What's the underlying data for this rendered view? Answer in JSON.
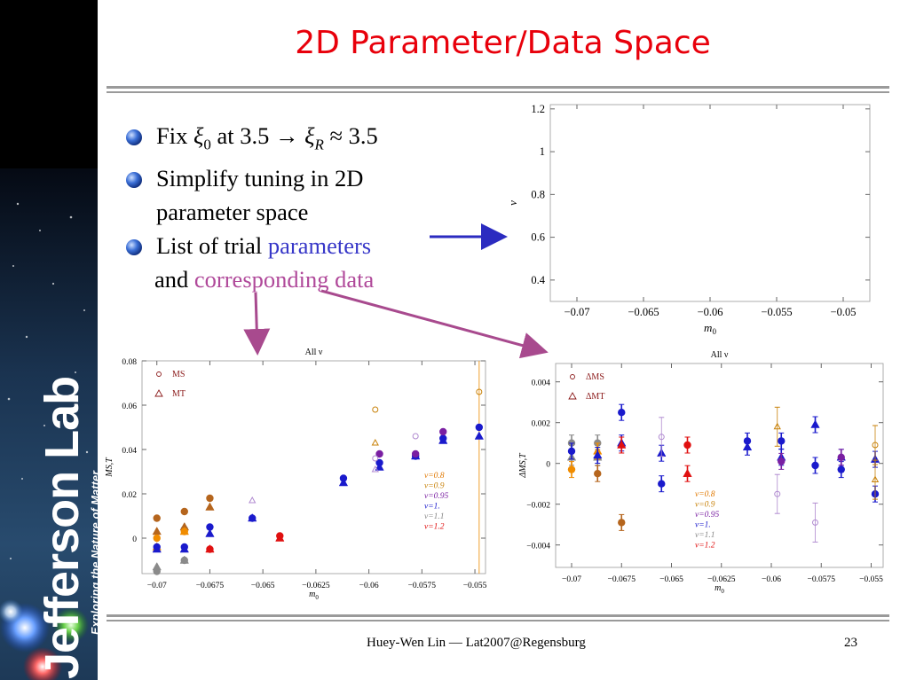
{
  "slide": {
    "title": "2D Parameter/Data Space",
    "footer_text": "Huey-Wen Lin — Lat2007@Regensburg",
    "page_number": "23",
    "brand": {
      "name": "Jefferson Lab",
      "tagline": "Exploring the Nature of Matter"
    },
    "colors": {
      "title": "#e8000b",
      "accent_blue": "#3737c8",
      "accent_magenta": "#b0499a",
      "arrow_blue": "#2b2bc0",
      "arrow_magenta": "#a84a8e"
    }
  },
  "bullets": [
    {
      "parts": [
        "Fix ",
        "ξ",
        "0",
        " at 3.5 ",
        "→ ",
        "ξ",
        "R",
        " ≈ 3.5"
      ]
    },
    {
      "parts": [
        "Simplify tuning in 2D",
        "parameter space"
      ]
    },
    {
      "parts": [
        "List of trial ",
        "parameters",
        "and ",
        "corresponding data"
      ]
    }
  ],
  "chart_data": [
    {
      "type": "scatter",
      "title": "",
      "xlabel": "m0",
      "ylabel": "ν",
      "xlim": [
        -0.072,
        -0.048
      ],
      "ylim": [
        0.3,
        1.22
      ],
      "xticks": [
        "−0.07",
        "−0.065",
        "−0.06",
        "−0.055",
        "−0.05"
      ],
      "yticks": [
        "1.2",
        "1",
        "0.8",
        "0.6",
        "0.4"
      ],
      "series": []
    },
    {
      "type": "scatter",
      "title": "All ν",
      "xlabel": "m0",
      "ylabel": "MS,T",
      "xlim": [
        -0.0707,
        -0.0545
      ],
      "ylim": [
        -0.016,
        0.08
      ],
      "xticks": [
        "−0.07",
        "−0.0675",
        "−0.065",
        "−0.0625",
        "−0.06",
        "−0.0575",
        "−0.055"
      ],
      "yticks": [
        "0.08",
        "0.06",
        "0.04",
        "0.02",
        "0"
      ],
      "legend": [
        {
          "symbol": "circle",
          "label": "MS",
          "color": "#8b1a1a"
        },
        {
          "symbol": "triangle",
          "label": "MT",
          "color": "#8b1a1a"
        }
      ],
      "nu_legend": [
        {
          "label": "ν=0.8",
          "color": "#e07800"
        },
        {
          "label": "ν=0.9",
          "color": "#c8820a"
        },
        {
          "label": "ν=0.95",
          "color": "#7a1fa2"
        },
        {
          "label": "ν=1.",
          "color": "#1a1acc"
        },
        {
          "label": "ν=1.1",
          "color": "#888888"
        },
        {
          "label": "ν=1.2",
          "color": "#e01010"
        }
      ],
      "series": [
        {
          "color": "#8a8a8a",
          "points": [
            {
              "x": -0.07,
              "y": -0.015,
              "m": "c"
            },
            {
              "x": -0.07,
              "y": -0.013,
              "m": "t"
            },
            {
              "x": -0.0687,
              "y": -0.01,
              "m": "c"
            },
            {
              "x": -0.0687,
              "y": -0.01,
              "m": "t"
            },
            {
              "x": -0.0687,
              "y": 0.004,
              "m": "c"
            },
            {
              "x": -0.0687,
              "y": 0.005,
              "m": "t"
            }
          ]
        },
        {
          "color": "#b5651d",
          "points": [
            {
              "x": -0.07,
              "y": 0.009,
              "m": "c"
            },
            {
              "x": -0.07,
              "y": 0.003,
              "m": "t"
            },
            {
              "x": -0.0687,
              "y": 0.012,
              "m": "c"
            },
            {
              "x": -0.0687,
              "y": 0.005,
              "m": "t"
            },
            {
              "x": -0.0675,
              "y": 0.018,
              "m": "c"
            },
            {
              "x": -0.0675,
              "y": 0.014,
              "m": "t"
            }
          ]
        },
        {
          "color": "#f08c00",
          "points": [
            {
              "x": -0.07,
              "y": 0.0,
              "m": "c"
            },
            {
              "x": -0.07,
              "y": -0.004,
              "m": "t"
            },
            {
              "x": -0.0687,
              "y": 0.003,
              "m": "c"
            },
            {
              "x": -0.0687,
              "y": 0.003,
              "m": "t"
            }
          ]
        },
        {
          "color": "#1a1acc",
          "points": [
            {
              "x": -0.07,
              "y": -0.004,
              "m": "c"
            },
            {
              "x": -0.07,
              "y": -0.005,
              "m": "t"
            },
            {
              "x": -0.0687,
              "y": -0.004,
              "m": "c"
            },
            {
              "x": -0.0687,
              "y": -0.005,
              "m": "t"
            },
            {
              "x": -0.0675,
              "y": 0.005,
              "m": "c"
            },
            {
              "x": -0.0675,
              "y": 0.002,
              "m": "t"
            },
            {
              "x": -0.0655,
              "y": 0.009,
              "m": "c"
            },
            {
              "x": -0.0655,
              "y": 0.009,
              "m": "t"
            },
            {
              "x": -0.0612,
              "y": 0.027,
              "m": "c"
            },
            {
              "x": -0.0612,
              "y": 0.025,
              "m": "t"
            },
            {
              "x": -0.0595,
              "y": 0.034,
              "m": "c"
            },
            {
              "x": -0.0595,
              "y": 0.032,
              "m": "t"
            },
            {
              "x": -0.0578,
              "y": 0.037,
              "m": "c"
            },
            {
              "x": -0.0578,
              "y": 0.037,
              "m": "t"
            },
            {
              "x": -0.0565,
              "y": 0.045,
              "m": "c"
            },
            {
              "x": -0.0565,
              "y": 0.044,
              "m": "t"
            },
            {
              "x": -0.0548,
              "y": 0.05,
              "m": "c"
            },
            {
              "x": -0.0548,
              "y": 0.046,
              "m": "t"
            }
          ]
        },
        {
          "color": "#e01010",
          "points": [
            {
              "x": -0.0675,
              "y": -0.005,
              "m": "c"
            },
            {
              "x": -0.0675,
              "y": -0.005,
              "m": "t"
            },
            {
              "x": -0.0642,
              "y": 0.001,
              "m": "c"
            },
            {
              "x": -0.0642,
              "y": 0.0,
              "m": "t"
            }
          ]
        },
        {
          "color": "#7a1fa2",
          "points": [
            {
              "x": -0.0595,
              "y": 0.038,
              "m": "c"
            },
            {
              "x": -0.0578,
              "y": 0.038,
              "m": "c"
            },
            {
              "x": -0.0565,
              "y": 0.048,
              "m": "c"
            }
          ]
        },
        {
          "color": "#b08ad0",
          "hollow": true,
          "points": [
            {
              "x": -0.0655,
              "y": 0.017,
              "m": "t"
            },
            {
              "x": -0.0578,
              "y": 0.046,
              "m": "c"
            },
            {
              "x": -0.0597,
              "y": 0.036,
              "m": "c"
            },
            {
              "x": -0.0597,
              "y": 0.031,
              "m": "t"
            }
          ]
        },
        {
          "color": "#c8820a",
          "hollow": true,
          "points": [
            {
              "x": -0.0597,
              "y": 0.058,
              "m": "c"
            },
            {
              "x": -0.0597,
              "y": 0.043,
              "m": "t"
            },
            {
              "x": -0.0548,
              "y": 0.066,
              "m": "c"
            }
          ]
        }
      ]
    },
    {
      "type": "scatter",
      "title": "All ν",
      "xlabel": "m0",
      "ylabel": "ΔMS,T",
      "xlim": [
        -0.0708,
        -0.0544
      ],
      "ylim": [
        -0.0051,
        0.0049
      ],
      "xticks": [
        "−0.07",
        "−0.0675",
        "−0.065",
        "−0.0625",
        "−0.06",
        "−0.0575",
        "−0.055"
      ],
      "yticks": [
        "0.004",
        "0.002",
        "0",
        "−0.002",
        "−0.004"
      ],
      "legend": [
        {
          "symbol": "circle",
          "label": "ΔMS",
          "color": "#8b1a1a"
        },
        {
          "symbol": "triangle",
          "label": "ΔMT",
          "color": "#8b1a1a"
        }
      ],
      "nu_legend": [
        {
          "label": "ν=0.8",
          "color": "#e07800"
        },
        {
          "label": "ν=0.9",
          "color": "#c8820a"
        },
        {
          "label": "ν=0.95",
          "color": "#7a1fa2"
        },
        {
          "label": "ν=1.",
          "color": "#1a1acc"
        },
        {
          "label": "ν=1.1",
          "color": "#888888"
        },
        {
          "label": "ν=1.2",
          "color": "#e01010"
        }
      ],
      "series": [
        {
          "color": "#8a8a8a",
          "points": [
            {
              "x": -0.07,
              "y": 0.001,
              "m": "c"
            },
            {
              "x": -0.07,
              "y": 0.0003,
              "m": "t"
            },
            {
              "x": -0.0687,
              "y": 0.001,
              "m": "c"
            },
            {
              "x": -0.0687,
              "y": 0.0003,
              "m": "t"
            }
          ]
        },
        {
          "color": "#b5651d",
          "points": [
            {
              "x": -0.0675,
              "y": -0.0029,
              "m": "c"
            },
            {
              "x": -0.0687,
              "y": -0.0005,
              "m": "c"
            }
          ]
        },
        {
          "color": "#f08c00",
          "points": [
            {
              "x": -0.07,
              "y": -0.0003,
              "m": "c"
            },
            {
              "x": -0.0687,
              "y": 0.0006,
              "m": "t"
            }
          ]
        },
        {
          "color": "#1a1acc",
          "points": [
            {
              "x": -0.07,
              "y": 0.0006,
              "m": "c"
            },
            {
              "x": -0.0687,
              "y": 0.0004,
              "m": "t"
            },
            {
              "x": -0.0675,
              "y": 0.0025,
              "m": "c"
            },
            {
              "x": -0.0675,
              "y": 0.001,
              "m": "t"
            },
            {
              "x": -0.0655,
              "y": -0.001,
              "m": "c"
            },
            {
              "x": -0.0655,
              "y": 0.0005,
              "m": "t"
            },
            {
              "x": -0.0612,
              "y": 0.0011,
              "m": "c"
            },
            {
              "x": -0.0612,
              "y": 0.0008,
              "m": "t"
            },
            {
              "x": -0.0595,
              "y": 0.0011,
              "m": "c"
            },
            {
              "x": -0.0595,
              "y": 0.0003,
              "m": "t"
            },
            {
              "x": -0.0578,
              "y": 0.0019,
              "m": "t"
            },
            {
              "x": -0.0578,
              "y": -0.0001,
              "m": "c"
            },
            {
              "x": -0.0565,
              "y": 0.0003,
              "m": "t"
            },
            {
              "x": -0.0565,
              "y": -0.0003,
              "m": "c"
            },
            {
              "x": -0.0548,
              "y": 0.0002,
              "m": "t"
            },
            {
              "x": -0.0548,
              "y": -0.0015,
              "m": "c"
            }
          ]
        },
        {
          "color": "#e01010",
          "points": [
            {
              "x": -0.0675,
              "y": 0.0009,
              "m": "t"
            },
            {
              "x": -0.0642,
              "y": 0.0009,
              "m": "c"
            },
            {
              "x": -0.0642,
              "y": -0.0005,
              "m": "t"
            }
          ]
        },
        {
          "color": "#7a1fa2",
          "points": [
            {
              "x": -0.0595,
              "y": 0.0001,
              "m": "c"
            },
            {
              "x": -0.0565,
              "y": 0.0003,
              "m": "c"
            }
          ]
        },
        {
          "color": "#b08ad0",
          "hollow": true,
          "points": [
            {
              "x": -0.0655,
              "y": 0.0013,
              "m": "c"
            },
            {
              "x": -0.0597,
              "y": -0.0015,
              "m": "c"
            },
            {
              "x": -0.0578,
              "y": -0.0029,
              "m": "c"
            }
          ]
        },
        {
          "color": "#c8820a",
          "hollow": true,
          "points": [
            {
              "x": -0.0597,
              "y": 0.0018,
              "m": "t"
            },
            {
              "x": -0.0548,
              "y": 0.0009,
              "m": "c"
            },
            {
              "x": -0.0548,
              "y": -0.0008,
              "m": "t"
            }
          ]
        }
      ]
    }
  ]
}
